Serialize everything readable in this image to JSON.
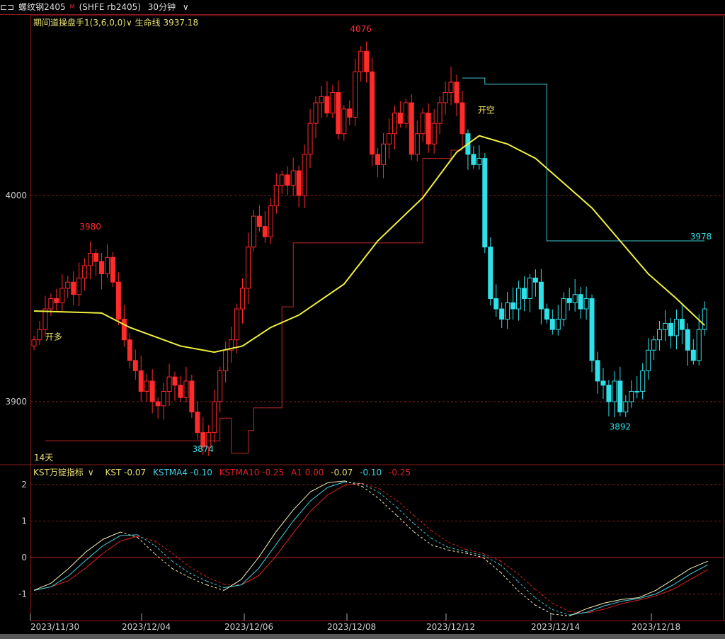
{
  "header": {
    "icon": "menu-icon",
    "symbol": "螺纹钢2405",
    "badge": "M",
    "code": "(SHFE rb2405)",
    "period": "30分钟"
  },
  "main_legend": {
    "indicator": "期间道操盘手1(3,6,0,0)",
    "line_label": "生命线",
    "line_value": "3937.18"
  },
  "kst_legend": {
    "name": "KST万锭指标",
    "kst": "KST -0.07",
    "ma4": "KSTMA4 -0.10",
    "ma10": "KSTMA10 -0.25",
    "a1": "A1 0.00",
    "v1": "-0.07",
    "v2": "-0.10",
    "v3": "-0.25"
  },
  "colors": {
    "up": "#ff2a2a",
    "down": "#30e0e8",
    "ma": "#f0f040",
    "kst": "#f0f070",
    "ma4": "#40d0e0",
    "ma10": "#e02020",
    "grid": "#8a1a1a"
  },
  "chart_data": [
    {
      "type": "candlestick",
      "yticks": [
        "4000",
        "3900"
      ],
      "ytick_values": [
        4000,
        3900
      ],
      "closes": [
        3930,
        3935,
        3945,
        3950,
        3948,
        3955,
        3958,
        3952,
        3960,
        3966,
        3972,
        3968,
        3962,
        3970,
        3958,
        3940,
        3930,
        3920,
        3915,
        3905,
        3910,
        3900,
        3898,
        3905,
        3912,
        3908,
        3902,
        3910,
        3895,
        3885,
        3878,
        3885,
        3900,
        3915,
        3925,
        3930,
        3945,
        3955,
        3975,
        3990,
        3985,
        3980,
        3995,
        4005,
        4010,
        4005,
        4012,
        4000,
        4020,
        4035,
        4045,
        4048,
        4040,
        4050,
        4030,
        4042,
        4038,
        4060,
        4070,
        4060,
        4020,
        4015,
        4025,
        4030,
        4040,
        4035,
        4045,
        4020,
        4030,
        4040,
        4025,
        4035,
        4045,
        4050,
        4055,
        4045,
        4030,
        4020,
        4015,
        4018,
        3975,
        3950,
        3945,
        3940,
        3948,
        3945,
        3955,
        3950,
        3960,
        3958,
        3945,
        3940,
        3935,
        3940,
        3950,
        3948,
        3952,
        3945,
        3950,
        3920,
        3910,
        3908,
        3900,
        3910,
        3895,
        3900,
        3905,
        3905,
        3915,
        3925,
        3930,
        3935,
        3938,
        3932,
        3940,
        3935,
        3925,
        3920,
        3935,
        3945
      ],
      "short_from_index": 77,
      "annotations": [
        {
          "text": "3980",
          "value": 3980,
          "index": 10
        },
        {
          "text": "4076",
          "value": 4076,
          "index": 58
        },
        {
          "text": "3874",
          "value": 3874,
          "index": 30
        },
        {
          "text": "3892",
          "value": 3892,
          "index": 104
        },
        {
          "text": "3978",
          "value": 3978,
          "index": 118
        },
        {
          "text": "开多",
          "value": 3930,
          "index": 2
        },
        {
          "text": "开空",
          "value": 4040,
          "index": 77
        },
        {
          "text": "14天",
          "value": 3870,
          "index": 0
        }
      ],
      "life_line": [
        [
          0,
          3944
        ],
        [
          12,
          3943
        ],
        [
          17,
          3936
        ],
        [
          26,
          3927
        ],
        [
          32,
          3924
        ],
        [
          37,
          3927
        ],
        [
          42,
          3936
        ],
        [
          47,
          3942
        ],
        [
          55,
          3957
        ],
        [
          61,
          3978
        ],
        [
          69,
          3999
        ],
        [
          75,
          4021
        ],
        [
          79,
          4029
        ],
        [
          84,
          4025
        ],
        [
          89,
          4018
        ],
        [
          94,
          4006
        ],
        [
          99,
          3994
        ],
        [
          104,
          3978
        ],
        [
          109,
          3962
        ],
        [
          114,
          3950
        ],
        [
          119,
          3937
        ]
      ],
      "long_stop": [
        [
          2,
          3881
        ],
        [
          33,
          3881
        ],
        [
          33,
          3892
        ],
        [
          35,
          3892
        ],
        [
          35,
          3875
        ],
        [
          38,
          3875
        ],
        [
          38,
          3886
        ],
        [
          39,
          3886
        ],
        [
          39,
          3897
        ],
        [
          44,
          3897
        ],
        [
          44,
          3946
        ],
        [
          46,
          3946
        ],
        [
          46,
          3977
        ],
        [
          69,
          3977
        ],
        [
          69,
          4018
        ],
        [
          74,
          4018
        ],
        [
          74,
          4022
        ],
        [
          76,
          4022
        ]
      ],
      "short_stop": [
        [
          76,
          4057
        ],
        [
          80,
          4057
        ],
        [
          80,
          4054
        ],
        [
          91,
          4054
        ],
        [
          91,
          3978
        ],
        [
          119,
          3978
        ]
      ]
    },
    {
      "type": "line",
      "yticks": [
        "2",
        "1",
        "0",
        "-1"
      ],
      "ytick_values": [
        2,
        1,
        0,
        -1
      ],
      "x": [
        "2023/11/30",
        "2023/12/04",
        "2023/12/06",
        "2023/12/08",
        "2023/12/12",
        "2023/12/14",
        "2023/12/18"
      ],
      "kst": [
        -0.9,
        -0.7,
        -0.3,
        0.15,
        0.5,
        0.7,
        0.55,
        0.1,
        -0.3,
        -0.55,
        -0.75,
        -0.9,
        -0.6,
        0.0,
        0.7,
        1.3,
        1.8,
        2.05,
        2.1,
        1.95,
        1.6,
        1.15,
        0.7,
        0.35,
        0.2,
        0.12,
        0.0,
        -0.4,
        -0.9,
        -1.3,
        -1.55,
        -1.6,
        -1.4,
        -1.25,
        -1.15,
        -1.1,
        -0.9,
        -0.6,
        -0.3,
        -0.1
      ]
    }
  ]
}
